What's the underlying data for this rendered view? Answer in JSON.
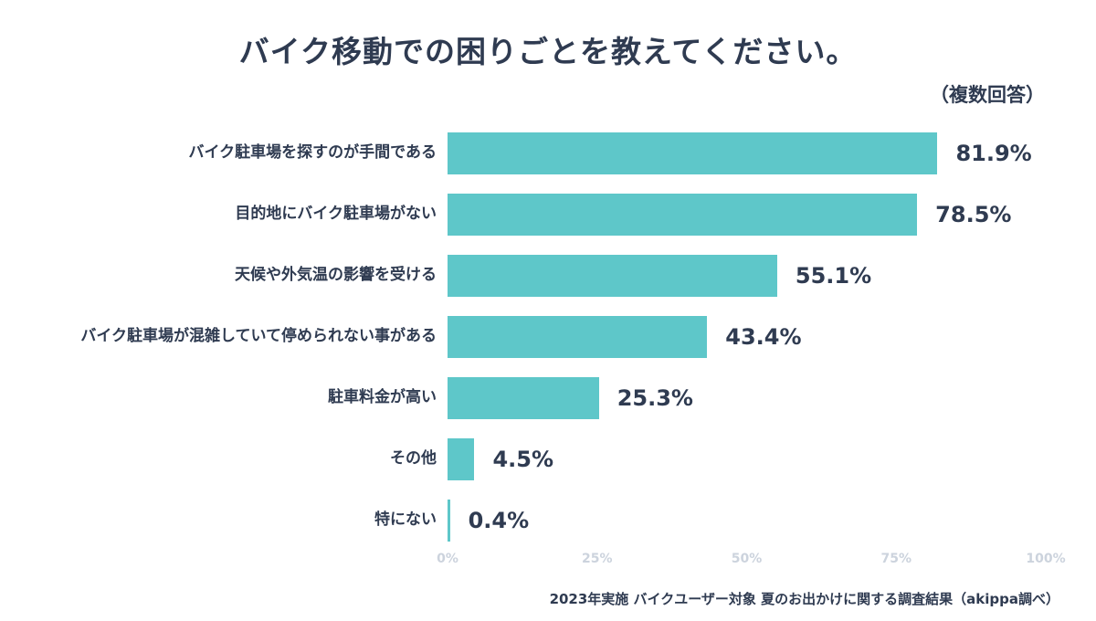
{
  "title": "バイク移動での困りごとを教えてください。",
  "subtitle": "（複数回答）",
  "footer": "2023年実施  バイクユーザー対象  夏のお出かけに関する調査結果（akippa調べ）",
  "colors": {
    "bar": "#5ec7c9",
    "text": "#2f3b51",
    "tick": "#ccd3dd"
  },
  "chart_data": {
    "type": "bar",
    "orientation": "horizontal",
    "title": "バイク移動での困りごとを教えてください。",
    "subtitle": "（複数回答）",
    "categories": [
      "バイク駐車場を探すのが手間である",
      "目的地にバイク駐車場がない",
      "天候や外気温の影響を受ける",
      "バイク駐車場が混雑していて停められない事がある",
      "駐車料金が高い",
      "その他",
      "特にない"
    ],
    "values": [
      81.9,
      78.5,
      55.1,
      43.4,
      25.3,
      4.5,
      0.4
    ],
    "value_labels": [
      "81.9%",
      "78.5%",
      "55.1%",
      "43.4%",
      "25.3%",
      "4.5%",
      "0.4%"
    ],
    "xlim": [
      0,
      100
    ],
    "x_ticks": [
      "0%",
      "25%",
      "50%",
      "75%",
      "100%"
    ],
    "grid": false,
    "legend": false,
    "source_note": "2023年実施  バイクユーザー対象  夏のお出かけに関する調査結果（akippa調べ）"
  }
}
